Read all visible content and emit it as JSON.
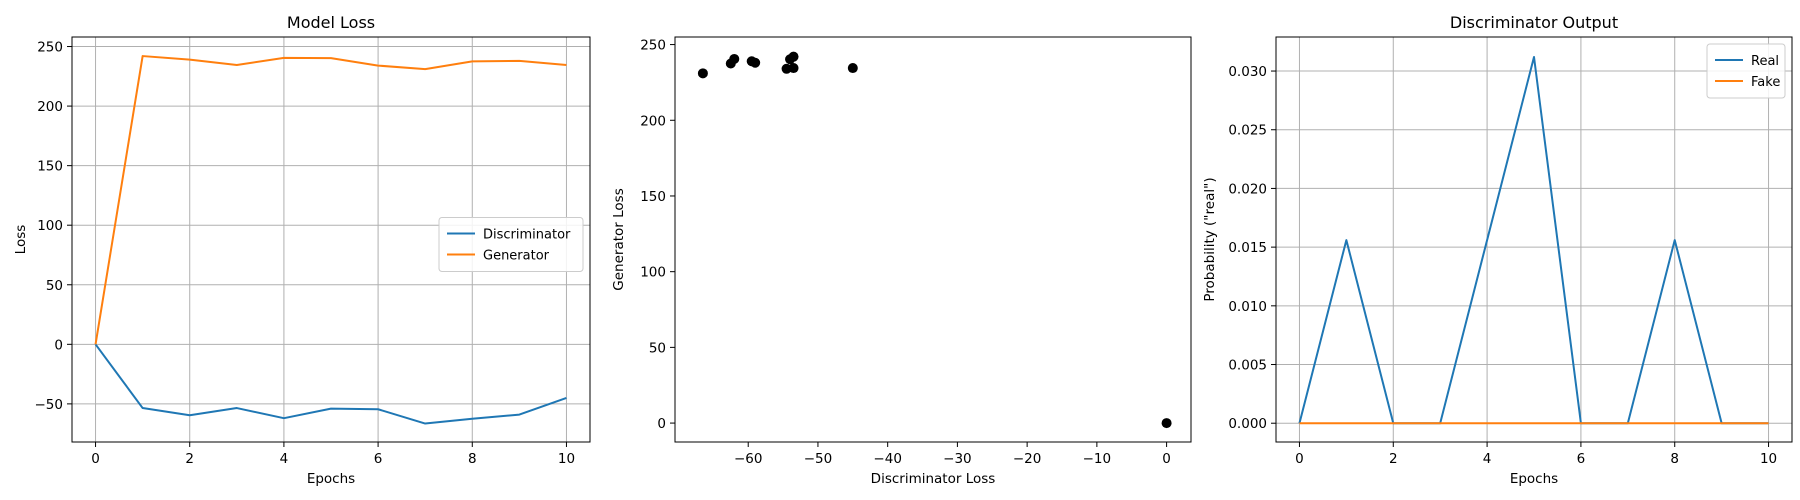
{
  "colors": {
    "blue": "#1f77b4",
    "orange": "#ff7f0e",
    "black": "#000000",
    "grid": "#b0b0b0"
  },
  "chart_data": [
    {
      "type": "line",
      "title": "Model Loss",
      "xlabel": "Epochs",
      "ylabel": "Loss",
      "grid": true,
      "legend": "center-right",
      "xlim": [
        -0.5,
        10.5
      ],
      "ylim": [
        -82,
        258
      ],
      "xticks": [
        0,
        2,
        4,
        6,
        8,
        10
      ],
      "xtick_labels": [
        "0",
        "2",
        "4",
        "6",
        "8",
        "10"
      ],
      "yticks": [
        -50,
        0,
        50,
        100,
        150,
        200,
        250
      ],
      "ytick_labels": [
        "−50",
        "0",
        "50",
        "100",
        "150",
        "200",
        "250"
      ],
      "x": [
        0,
        1,
        2,
        3,
        4,
        5,
        6,
        7,
        8,
        9,
        10
      ],
      "series": [
        {
          "name": "Discriminator",
          "color": "#1f77b4",
          "values": [
            0,
            -53.5,
            -59.5,
            -53.5,
            -62,
            -54,
            -54.5,
            -66.5,
            -62.5,
            -59,
            -45
          ]
        },
        {
          "name": "Generator",
          "color": "#ff7f0e",
          "values": [
            0,
            242,
            239,
            234.5,
            240.5,
            240.3,
            234,
            231,
            237.5,
            238,
            234.5
          ]
        }
      ]
    },
    {
      "type": "scatter",
      "title": "",
      "xlabel": "Discriminator Loss",
      "ylabel": "Generator Loss",
      "grid": false,
      "xlim": [
        -70.5,
        3.5
      ],
      "ylim": [
        -12.5,
        255
      ],
      "xticks": [
        -60,
        -50,
        -40,
        -30,
        -20,
        -10,
        0
      ],
      "xtick_labels": [
        "−60",
        "−50",
        "−40",
        "−30",
        "−20",
        "−10",
        "0"
      ],
      "yticks": [
        0,
        50,
        100,
        150,
        200,
        250
      ],
      "ytick_labels": [
        "0",
        "50",
        "100",
        "150",
        "200",
        "250"
      ],
      "series": [
        {
          "color": "#000000",
          "x": [
            0,
            -53.5,
            -59.5,
            -53.5,
            -62,
            -54,
            -54.5,
            -66.5,
            -62.5,
            -59,
            -45
          ],
          "y": [
            0,
            242,
            239,
            234.5,
            240.5,
            240.3,
            234,
            231,
            237.5,
            238,
            234.5
          ]
        }
      ]
    },
    {
      "type": "line",
      "title": "Discriminator Output",
      "xlabel": "Epochs",
      "ylabel": "Probability (\"real\")",
      "grid": true,
      "legend": "top-right",
      "xlim": [
        -0.5,
        10.5
      ],
      "ylim": [
        -0.0016,
        0.0329
      ],
      "xticks": [
        0,
        2,
        4,
        6,
        8,
        10
      ],
      "xtick_labels": [
        "0",
        "2",
        "4",
        "6",
        "8",
        "10"
      ],
      "yticks": [
        0,
        0.005,
        0.01,
        0.015,
        0.02,
        0.025,
        0.03
      ],
      "ytick_labels": [
        "0.000",
        "0.005",
        "0.010",
        "0.015",
        "0.020",
        "0.025",
        "0.030"
      ],
      "x": [
        0,
        1,
        2,
        3,
        4,
        5,
        6,
        7,
        8,
        9,
        10
      ],
      "series": [
        {
          "name": "Real",
          "color": "#1f77b4",
          "values": [
            0,
            0.0156,
            0,
            0,
            0.0156,
            0.0312,
            0,
            0,
            0.0156,
            0,
            0
          ]
        },
        {
          "name": "Fake",
          "color": "#ff7f0e",
          "values": [
            0,
            0,
            0,
            0,
            0,
            0,
            0,
            0,
            0,
            0,
            0
          ]
        }
      ]
    }
  ]
}
